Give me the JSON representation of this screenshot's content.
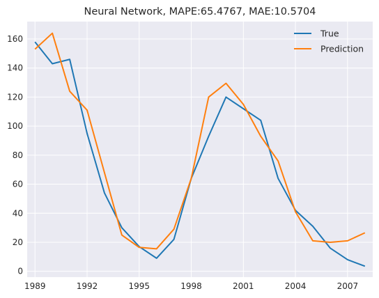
{
  "chart_data": {
    "type": "line",
    "title": "Neural Network, MAPE:65.4767, MAE:10.5704",
    "xlabel": "",
    "ylabel": "",
    "x": [
      1989,
      1990,
      1991,
      1992,
      1993,
      1994,
      1995,
      1996,
      1997,
      1998,
      1999,
      2000,
      2001,
      2002,
      2003,
      2004,
      2005,
      2006,
      2007,
      2008
    ],
    "xlim": [
      1988.55,
      2008.45
    ],
    "ylim": [
      -4,
      172
    ],
    "xticks": [
      1989,
      1992,
      1995,
      1998,
      2001,
      2004,
      2007
    ],
    "yticks": [
      0,
      20,
      40,
      60,
      80,
      100,
      120,
      140,
      160
    ],
    "grid": true,
    "legend_position": "top-right",
    "series": [
      {
        "name": "True",
        "color": "#1f77b4",
        "values": [
          158,
          143,
          146,
          95,
          54,
          30,
          17,
          9,
          22,
          64,
          93,
          120,
          112,
          104,
          64,
          42,
          31,
          16,
          8,
          3.5
        ]
      },
      {
        "name": "Prediction",
        "color": "#ff7f0e",
        "values": [
          153,
          164,
          124,
          111,
          68,
          25,
          16.5,
          15.5,
          29,
          64,
          120,
          129.5,
          115,
          93,
          76,
          41,
          21,
          20,
          21,
          26.5
        ]
      }
    ]
  }
}
